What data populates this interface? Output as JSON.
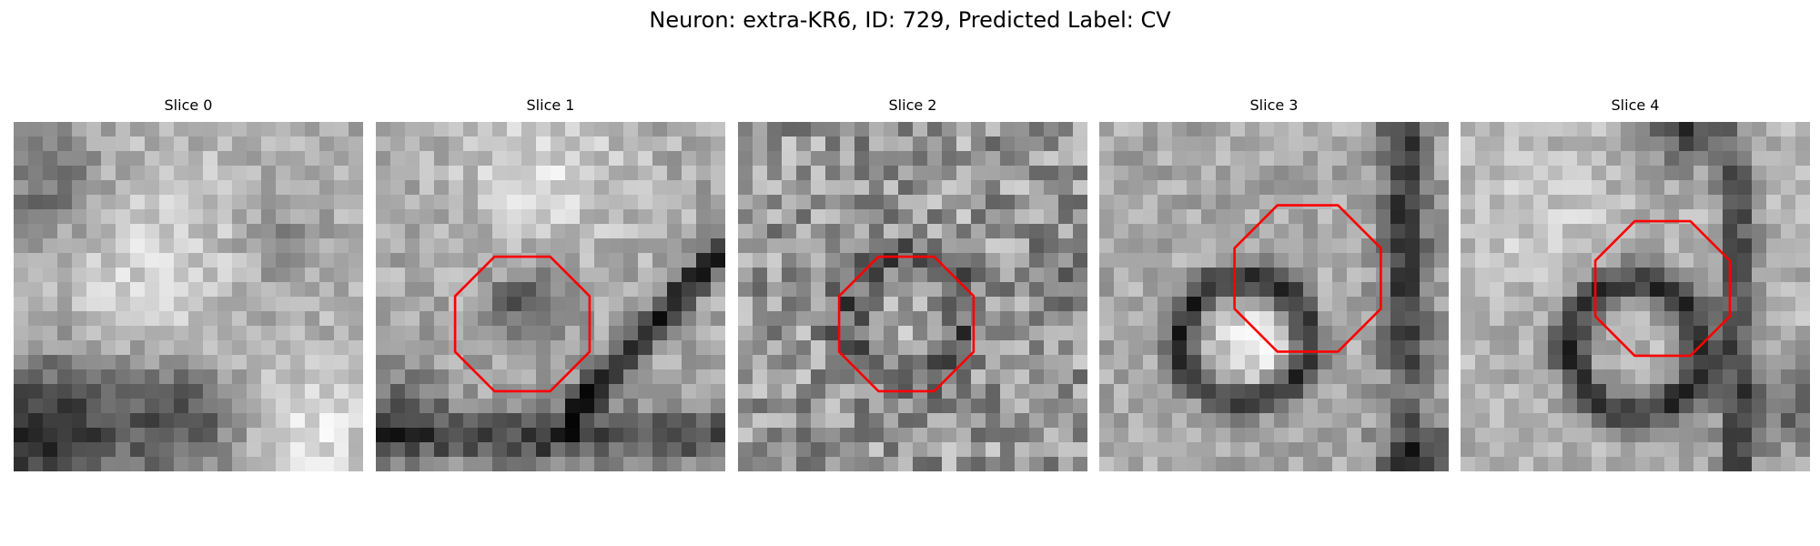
{
  "figure": {
    "title": "Neuron: extra-KR6, ID: 729, Predicted Label: CV",
    "colormap": "gray",
    "roi_color": "#ff0000",
    "roi_shape": "octagon",
    "panels": [
      {
        "label": "Slice 0",
        "seed": 11,
        "pattern": "diag-dark-bottom-left",
        "has_roi": false
      },
      {
        "label": "Slice 1",
        "seed": 23,
        "pattern": "dark-band-right",
        "has_roi": true
      },
      {
        "label": "Slice 2",
        "seed": 37,
        "pattern": "noisy-ring",
        "has_roi": true
      },
      {
        "label": "Slice 3",
        "seed": 41,
        "pattern": "dark-ring-bright-core",
        "has_roi": true
      },
      {
        "label": "Slice 4",
        "seed": 59,
        "pattern": "dark-ring-right-edge",
        "has_roi": true
      }
    ]
  }
}
